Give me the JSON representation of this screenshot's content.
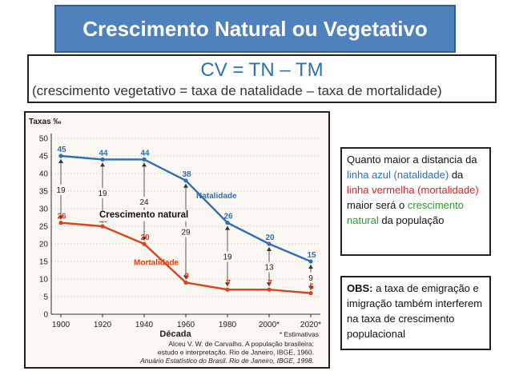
{
  "title": "Crescimento Natural ou Vegetativo",
  "formula": {
    "main": "CV = TN – TM",
    "sub": "(crescimento vegetativo = taxa de natalidade – taxa de mortalidade)"
  },
  "note1": {
    "p1": "Quanto maior a distancia da ",
    "blue": "linha azul (natalidade)",
    "p2": " da ",
    "red": "linha vermelha (mortalidade)",
    "p3": " maior será o ",
    "green": "crescimento natural",
    "p4": " da população"
  },
  "note2": {
    "label": "OBS:",
    "text": " a taxa de emigração e imigração também interferem na taxa de crescimento populacional"
  },
  "colors": {
    "title_bg": "#4f81bd",
    "natalidade": "#2f6fb4",
    "mortalidade": "#e0401a",
    "text_blue": "#2f6fb4",
    "text_red": "#e02020",
    "text_green": "#2e9a2e"
  },
  "chart_data": {
    "type": "line",
    "ylabel": "Taxas ‰",
    "xlabel": "Década",
    "ylim": [
      0,
      50
    ],
    "yticks": [
      "0",
      "5",
      "10",
      "15",
      "20",
      "25",
      "30",
      "35",
      "40",
      "45",
      "50"
    ],
    "x": [
      1900,
      1920,
      1940,
      1960,
      1980,
      2000,
      2020
    ],
    "xtick_labels": [
      "1900",
      "1920",
      "1940",
      "1960",
      "1980",
      "2000*",
      "2020*"
    ],
    "series": [
      {
        "name": "Natalidade",
        "values": [
          45,
          44,
          44,
          38,
          26,
          20,
          15
        ],
        "labels": [
          "45",
          "44",
          "44",
          "38",
          "26",
          "20",
          "15"
        ]
      },
      {
        "name": "Mortalidade",
        "values": [
          26,
          25,
          20,
          9,
          7,
          7,
          6
        ],
        "labels": [
          "26",
          "25",
          "20",
          "9",
          "7",
          "7",
          "6"
        ]
      }
    ],
    "gap_labels": [
      "19",
      "19",
      "24",
      "29",
      "19",
      "13",
      "9"
    ],
    "annotation": "Crescimento natural",
    "estimate_note": "* Estimativas",
    "source_lines": [
      "Alceu V. W. de Carvalho. A população brasileira:",
      "estudo e interpretação. Rio de Janeiro, IBGE, 1960.",
      "Anuário Estatístico do Brasil. Rio de Janeiro, IBGE, 1998."
    ]
  }
}
